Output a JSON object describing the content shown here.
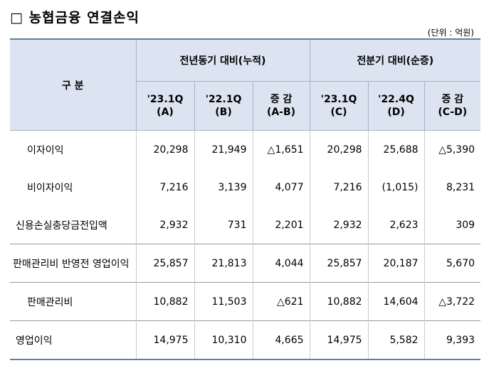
{
  "title": "□ 농협금융 연결손익",
  "unit": "(단위 : 억원)",
  "header": {
    "row_label": "구 분",
    "group1": "전년동기 대비(누적)",
    "group2": "전분기 대비(순증)",
    "cols": [
      {
        "l1": "'23.1Q",
        "l2": "(A)"
      },
      {
        "l1": "'22.1Q",
        "l2": "(B)"
      },
      {
        "l1": "증 감",
        "l2": "(A-B)"
      },
      {
        "l1": "'23.1Q",
        "l2": "(C)"
      },
      {
        "l1": "'22.4Q",
        "l2": "(D)"
      },
      {
        "l1": "증 감",
        "l2": "(C-D)"
      }
    ]
  },
  "rows": [
    {
      "label": "이자이익",
      "values": [
        "20,298",
        "21,949",
        "△1,651",
        "20,298",
        "25,688",
        "△5,390"
      ]
    },
    {
      "label": "비이자이익",
      "values": [
        "7,216",
        "3,139",
        "4,077",
        "7,216",
        "(1,015)",
        "8,231"
      ]
    },
    {
      "label": "신용손실충당금전입액",
      "values": [
        "2,932",
        "731",
        "2,201",
        "2,932",
        "2,623",
        "309"
      ]
    },
    {
      "label": "판매관리비 반영전 영업이익",
      "values": [
        "25,857",
        "21,813",
        "4,044",
        "25,857",
        "20,187",
        "5,670"
      ]
    },
    {
      "label": "판매관리비",
      "values": [
        "10,882",
        "11,503",
        "△621",
        "10,882",
        "14,604",
        "△3,722"
      ]
    },
    {
      "label": "영업이익",
      "values": [
        "14,975",
        "10,310",
        "4,665",
        "14,975",
        "5,582",
        "9,393"
      ]
    }
  ]
}
